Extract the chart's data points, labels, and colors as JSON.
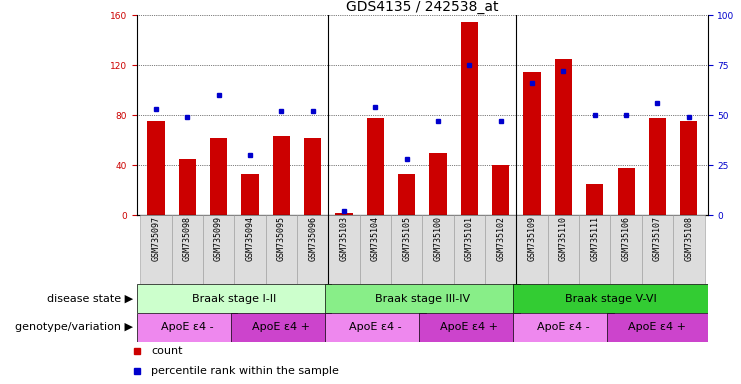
{
  "title": "GDS4135 / 242538_at",
  "samples": [
    "GSM735097",
    "GSM735098",
    "GSM735099",
    "GSM735094",
    "GSM735095",
    "GSM735096",
    "GSM735103",
    "GSM735104",
    "GSM735105",
    "GSM735100",
    "GSM735101",
    "GSM735102",
    "GSM735109",
    "GSM735110",
    "GSM735111",
    "GSM735106",
    "GSM735107",
    "GSM735108"
  ],
  "counts": [
    75,
    45,
    62,
    33,
    63,
    62,
    2,
    78,
    33,
    50,
    155,
    40,
    115,
    125,
    25,
    38,
    78,
    75
  ],
  "percentiles": [
    53,
    49,
    60,
    30,
    52,
    52,
    2,
    54,
    28,
    47,
    75,
    47,
    66,
    72,
    50,
    50,
    56,
    49
  ],
  "ylim_left": [
    0,
    160
  ],
  "ylim_right": [
    0,
    100
  ],
  "yticks_left": [
    0,
    40,
    80,
    120,
    160
  ],
  "yticks_right": [
    0,
    25,
    50,
    75,
    100
  ],
  "bar_color": "#cc0000",
  "dot_color": "#0000cc",
  "group_boundaries": [
    6,
    12
  ],
  "disease_state_groups": [
    {
      "label": "Braak stage I-II",
      "start": 0,
      "end": 6,
      "color": "#ccffcc"
    },
    {
      "label": "Braak stage III-IV",
      "start": 6,
      "end": 12,
      "color": "#88ee88"
    },
    {
      "label": "Braak stage V-VI",
      "start": 12,
      "end": 18,
      "color": "#33cc33"
    }
  ],
  "genotype_groups": [
    {
      "label": "ApoE ε4 -",
      "start": 0,
      "end": 3,
      "color": "#ee88ee"
    },
    {
      "label": "ApoE ε4 +",
      "start": 3,
      "end": 6,
      "color": "#cc44cc"
    },
    {
      "label": "ApoE ε4 -",
      "start": 6,
      "end": 9,
      "color": "#ee88ee"
    },
    {
      "label": "ApoE ε4 +",
      "start": 9,
      "end": 12,
      "color": "#cc44cc"
    },
    {
      "label": "ApoE ε4 -",
      "start": 12,
      "end": 15,
      "color": "#ee88ee"
    },
    {
      "label": "ApoE ε4 +",
      "start": 15,
      "end": 18,
      "color": "#cc44cc"
    }
  ],
  "left_tick_color": "#cc0000",
  "right_tick_color": "#0000cc",
  "grid_color": "#000000",
  "bg_color": "#ffffff",
  "title_fontsize": 10,
  "tick_fontsize": 6.5,
  "sample_fontsize": 6,
  "label_fontsize": 8,
  "group_label_fontsize": 8,
  "legend_fontsize": 8
}
